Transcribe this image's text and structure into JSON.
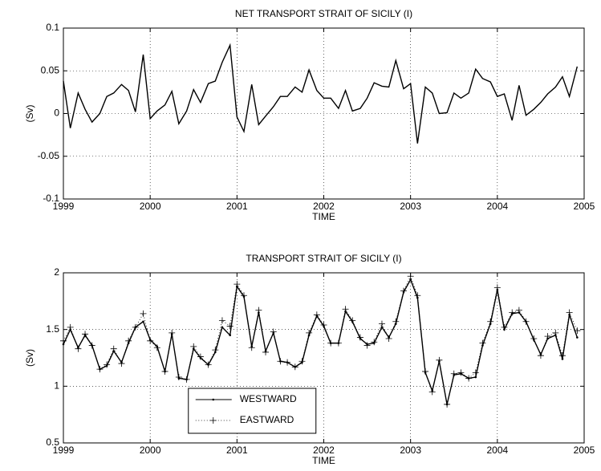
{
  "chart_data": [
    {
      "type": "line",
      "title": "NET TRANSPORT STRAIT OF SICILY (I)",
      "xlabel": "TIME",
      "ylabel": "(Sv)",
      "x": [
        1999,
        1999.08,
        1999.17,
        1999.25,
        1999.33,
        1999.42,
        1999.5,
        1999.58,
        1999.67,
        1999.75,
        1999.83,
        1999.92,
        2000,
        2000.08,
        2000.17,
        2000.25,
        2000.33,
        2000.42,
        2000.5,
        2000.58,
        2000.67,
        2000.75,
        2000.83,
        2000.92,
        2001,
        2001.08,
        2001.17,
        2001.25,
        2001.33,
        2001.42,
        2001.5,
        2001.58,
        2001.67,
        2001.75,
        2001.83,
        2001.92,
        2002,
        2002.08,
        2002.17,
        2002.25,
        2002.33,
        2002.42,
        2002.5,
        2002.58,
        2002.67,
        2002.75,
        2002.83,
        2002.92,
        2003,
        2003.08,
        2003.17,
        2003.25,
        2003.33,
        2003.42,
        2003.5,
        2003.58,
        2003.67,
        2003.75,
        2003.83,
        2003.92,
        2004,
        2004.08,
        2004.17,
        2004.25,
        2004.33,
        2004.42,
        2004.5,
        2004.58,
        2004.67,
        2004.75,
        2004.83,
        2004.92
      ],
      "values": [
        0.038,
        -0.017,
        0.024,
        0.005,
        -0.01,
        0.0,
        0.02,
        0.024,
        0.034,
        0.027,
        0.002,
        0.069,
        -0.006,
        0.003,
        0.01,
        0.026,
        -0.012,
        0.003,
        0.028,
        0.013,
        0.035,
        0.038,
        0.06,
        0.08,
        -0.004,
        -0.021,
        0.034,
        -0.013,
        -0.003,
        0.008,
        0.02,
        0.02,
        0.031,
        0.025,
        0.051,
        0.027,
        0.018,
        0.018,
        0.006,
        0.027,
        0.003,
        0.006,
        0.018,
        0.036,
        0.032,
        0.031,
        0.062,
        0.029,
        0.035,
        -0.035,
        0.031,
        0.024,
        0.0,
        0.001,
        0.024,
        0.018,
        0.024,
        0.052,
        0.041,
        0.037,
        0.02,
        0.023,
        -0.008,
        0.033,
        -0.002,
        0.005,
        0.013,
        0.023,
        0.031,
        0.043,
        0.02,
        0.055
      ],
      "color": "#000000",
      "xlim": [
        1999,
        2005
      ],
      "xticks": [
        1999,
        2000,
        2001,
        2002,
        2003,
        2004,
        2005
      ],
      "ylim": [
        -0.1,
        0.1
      ],
      "yticks": [
        -0.1,
        -0.05,
        0,
        0.05,
        0.1
      ],
      "grid": true
    },
    {
      "type": "line",
      "title": "TRANSPORT STRAIT OF SICILY (I)",
      "xlabel": "TIME",
      "ylabel": "(Sv)",
      "x": [
        1999,
        1999.08,
        1999.17,
        1999.25,
        1999.33,
        1999.42,
        1999.5,
        1999.58,
        1999.67,
        1999.75,
        1999.83,
        1999.92,
        2000,
        2000.08,
        2000.17,
        2000.25,
        2000.33,
        2000.42,
        2000.5,
        2000.58,
        2000.67,
        2000.75,
        2000.83,
        2000.92,
        2001,
        2001.08,
        2001.17,
        2001.25,
        2001.33,
        2001.42,
        2001.5,
        2001.58,
        2001.67,
        2001.75,
        2001.83,
        2001.92,
        2002,
        2002.08,
        2002.17,
        2002.25,
        2002.33,
        2002.42,
        2002.5,
        2002.58,
        2002.67,
        2002.75,
        2002.83,
        2002.92,
        2003,
        2003.08,
        2003.17,
        2003.25,
        2003.33,
        2003.42,
        2003.5,
        2003.58,
        2003.67,
        2003.75,
        2003.83,
        2003.92,
        2004,
        2004.08,
        2004.17,
        2004.25,
        2004.33,
        2004.42,
        2004.5,
        2004.58,
        2004.67,
        2004.75,
        2004.83,
        2004.92
      ],
      "series": [
        {
          "name": "WESTWARD",
          "color": "#000000",
          "style": "solid",
          "marker": "dot",
          "values": [
            1.37,
            1.5,
            1.34,
            1.45,
            1.36,
            1.15,
            1.18,
            1.31,
            1.21,
            1.38,
            1.52,
            1.57,
            1.41,
            1.35,
            1.13,
            1.46,
            1.07,
            1.06,
            1.33,
            1.25,
            1.19,
            1.3,
            1.52,
            1.45,
            1.88,
            1.79,
            1.35,
            1.65,
            1.31,
            1.47,
            1.22,
            1.21,
            1.17,
            1.21,
            1.45,
            1.62,
            1.53,
            1.38,
            1.38,
            1.66,
            1.57,
            1.42,
            1.37,
            1.38,
            1.52,
            1.43,
            1.55,
            1.83,
            1.94,
            1.78,
            1.12,
            0.96,
            1.22,
            0.84,
            1.1,
            1.11,
            1.07,
            1.08,
            1.36,
            1.55,
            1.85,
            1.5,
            1.64,
            1.65,
            1.57,
            1.41,
            1.28,
            1.42,
            1.45,
            1.24,
            1.63,
            1.43
          ]
        },
        {
          "name": "EASTWARD",
          "color": "#000000",
          "style": "dotted",
          "marker": "plus",
          "values": [
            1.4,
            1.52,
            1.33,
            1.46,
            1.36,
            1.15,
            1.19,
            1.33,
            1.2,
            1.4,
            1.52,
            1.64,
            1.4,
            1.34,
            1.13,
            1.47,
            1.08,
            1.06,
            1.35,
            1.26,
            1.19,
            1.32,
            1.58,
            1.53,
            1.9,
            1.8,
            1.34,
            1.67,
            1.3,
            1.48,
            1.22,
            1.21,
            1.17,
            1.22,
            1.47,
            1.63,
            1.54,
            1.38,
            1.38,
            1.68,
            1.58,
            1.43,
            1.36,
            1.39,
            1.55,
            1.42,
            1.57,
            1.84,
            1.97,
            1.8,
            1.13,
            0.95,
            1.23,
            0.84,
            1.11,
            1.12,
            1.07,
            1.12,
            1.38,
            1.57,
            1.87,
            1.52,
            1.65,
            1.67,
            1.57,
            1.42,
            1.27,
            1.44,
            1.47,
            1.27,
            1.65,
            1.49
          ]
        }
      ],
      "legend": "lower center",
      "xlim": [
        1999,
        2005
      ],
      "xticks": [
        1999,
        2000,
        2001,
        2002,
        2003,
        2004,
        2005
      ],
      "ylim": [
        0.5,
        2
      ],
      "yticks": [
        0.5,
        1,
        1.5,
        2
      ],
      "grid": true
    }
  ]
}
